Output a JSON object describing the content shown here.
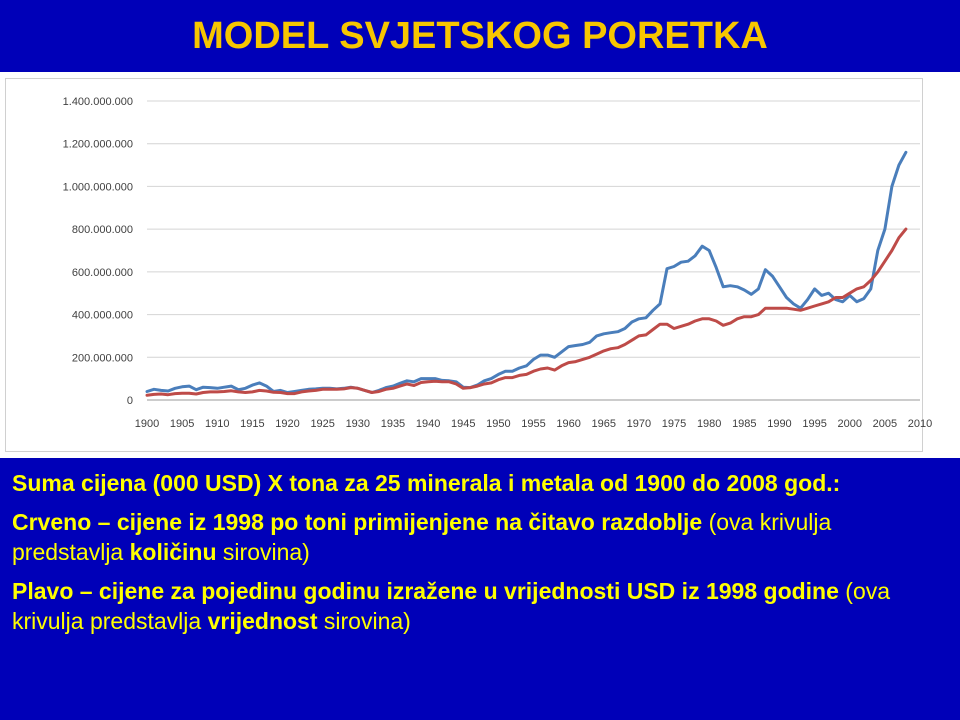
{
  "title": "MODEL SVJETSKOG PORETKA",
  "colors": {
    "background": "#0000B8",
    "title": "#F7C600",
    "caption_text": "#FFFF00",
    "blue_series": "#4A7EBB",
    "red_series": "#BE4B48"
  },
  "caption": {
    "line1": "Suma cijena (000 USD) X tona za 25 minerala i metala od 1900 do 2008 god.:",
    "red_bold": "Crveno – cijene iz 1998 po toni primijenjene na čitavo razdoblje",
    "red_open": " (ova krivulja predstavlja ",
    "red_emph": "količinu",
    "red_close": " sirovina)",
    "blue_bold": "Plavo – cijene za pojedinu godinu izražene u vrijednosti USD iz 1998 godine",
    "blue_open": " (ova krivulja predstavlja ",
    "blue_emph": "vrijednost",
    "blue_close": " sirovina)"
  },
  "chart_data": {
    "type": "line",
    "title": "",
    "xlabel": "",
    "ylabel": "",
    "xlim": [
      1900,
      2010
    ],
    "ylim": [
      0,
      1400000000
    ],
    "xticks": [
      "1900",
      "1905",
      "1910",
      "1915",
      "1920",
      "1925",
      "1930",
      "1935",
      "1940",
      "1945",
      "1950",
      "1955",
      "1960",
      "1965",
      "1970",
      "1975",
      "1980",
      "1985",
      "1990",
      "1995",
      "2000",
      "2005",
      "2010"
    ],
    "yticks": [
      "0",
      "200.000.000",
      "400.000.000",
      "600.000.000",
      "800.000.000",
      "1.000.000.000",
      "1.200.000.000",
      "1.400.000.000"
    ],
    "grid": "horizontal",
    "x": [
      1900,
      1901,
      1902,
      1903,
      1904,
      1905,
      1906,
      1907,
      1908,
      1909,
      1910,
      1911,
      1912,
      1913,
      1914,
      1915,
      1916,
      1917,
      1918,
      1919,
      1920,
      1921,
      1922,
      1923,
      1924,
      1925,
      1926,
      1927,
      1928,
      1929,
      1930,
      1931,
      1932,
      1933,
      1934,
      1935,
      1936,
      1937,
      1938,
      1939,
      1940,
      1941,
      1942,
      1943,
      1944,
      1945,
      1946,
      1947,
      1948,
      1949,
      1950,
      1951,
      1952,
      1953,
      1954,
      1955,
      1956,
      1957,
      1958,
      1959,
      1960,
      1961,
      1962,
      1963,
      1964,
      1965,
      1966,
      1967,
      1968,
      1969,
      1970,
      1971,
      1972,
      1973,
      1974,
      1975,
      1976,
      1977,
      1978,
      1979,
      1980,
      1981,
      1982,
      1983,
      1984,
      1985,
      1986,
      1987,
      1988,
      1989,
      1990,
      1991,
      1992,
      1993,
      1994,
      1995,
      1996,
      1997,
      1998,
      1999,
      2000,
      2001,
      2002,
      2003,
      2004,
      2005,
      2006,
      2007,
      2008
    ],
    "series": [
      {
        "color": "#4A7EBB",
        "values": [
          40000000,
          50000000,
          45000000,
          42000000,
          55000000,
          62000000,
          65000000,
          48000000,
          60000000,
          58000000,
          55000000,
          60000000,
          65000000,
          48000000,
          55000000,
          70000000,
          80000000,
          65000000,
          40000000,
          45000000,
          35000000,
          40000000,
          45000000,
          50000000,
          52000000,
          55000000,
          55000000,
          52000000,
          55000000,
          60000000,
          55000000,
          45000000,
          35000000,
          45000000,
          58000000,
          65000000,
          78000000,
          90000000,
          85000000,
          100000000,
          100000000,
          100000000,
          92000000,
          90000000,
          85000000,
          60000000,
          58000000,
          70000000,
          90000000,
          100000000,
          120000000,
          135000000,
          135000000,
          150000000,
          160000000,
          190000000,
          210000000,
          210000000,
          200000000,
          225000000,
          250000000,
          255000000,
          260000000,
          270000000,
          300000000,
          310000000,
          315000000,
          320000000,
          335000000,
          365000000,
          380000000,
          385000000,
          420000000,
          450000000,
          615000000,
          625000000,
          645000000,
          650000000,
          675000000,
          720000000,
          700000000,
          620000000,
          530000000,
          535000000,
          530000000,
          515000000,
          495000000,
          520000000,
          610000000,
          580000000,
          530000000,
          480000000,
          450000000,
          430000000,
          470000000,
          520000000,
          490000000,
          500000000,
          470000000,
          460000000,
          490000000,
          460000000,
          475000000,
          520000000,
          700000000,
          800000000,
          1000000000,
          1100000000,
          1160000000
        ]
      },
      {
        "color": "#BE4B48",
        "values": [
          22000000,
          26000000,
          28000000,
          25000000,
          30000000,
          32000000,
          32000000,
          28000000,
          35000000,
          38000000,
          38000000,
          40000000,
          43000000,
          38000000,
          35000000,
          38000000,
          45000000,
          42000000,
          36000000,
          35000000,
          30000000,
          30000000,
          38000000,
          42000000,
          45000000,
          50000000,
          50000000,
          50000000,
          52000000,
          58000000,
          55000000,
          45000000,
          35000000,
          40000000,
          50000000,
          55000000,
          65000000,
          75000000,
          68000000,
          82000000,
          85000000,
          88000000,
          85000000,
          85000000,
          75000000,
          55000000,
          58000000,
          65000000,
          75000000,
          80000000,
          95000000,
          105000000,
          105000000,
          115000000,
          120000000,
          135000000,
          145000000,
          150000000,
          140000000,
          160000000,
          175000000,
          180000000,
          190000000,
          200000000,
          215000000,
          230000000,
          240000000,
          245000000,
          260000000,
          280000000,
          300000000,
          305000000,
          330000000,
          355000000,
          355000000,
          335000000,
          345000000,
          355000000,
          370000000,
          380000000,
          380000000,
          370000000,
          350000000,
          360000000,
          380000000,
          390000000,
          390000000,
          400000000,
          430000000,
          430000000,
          430000000,
          430000000,
          425000000,
          420000000,
          430000000,
          440000000,
          450000000,
          460000000,
          480000000,
          480000000,
          500000000,
          520000000,
          530000000,
          560000000,
          600000000,
          650000000,
          700000000,
          760000000,
          800000000
        ]
      }
    ]
  }
}
